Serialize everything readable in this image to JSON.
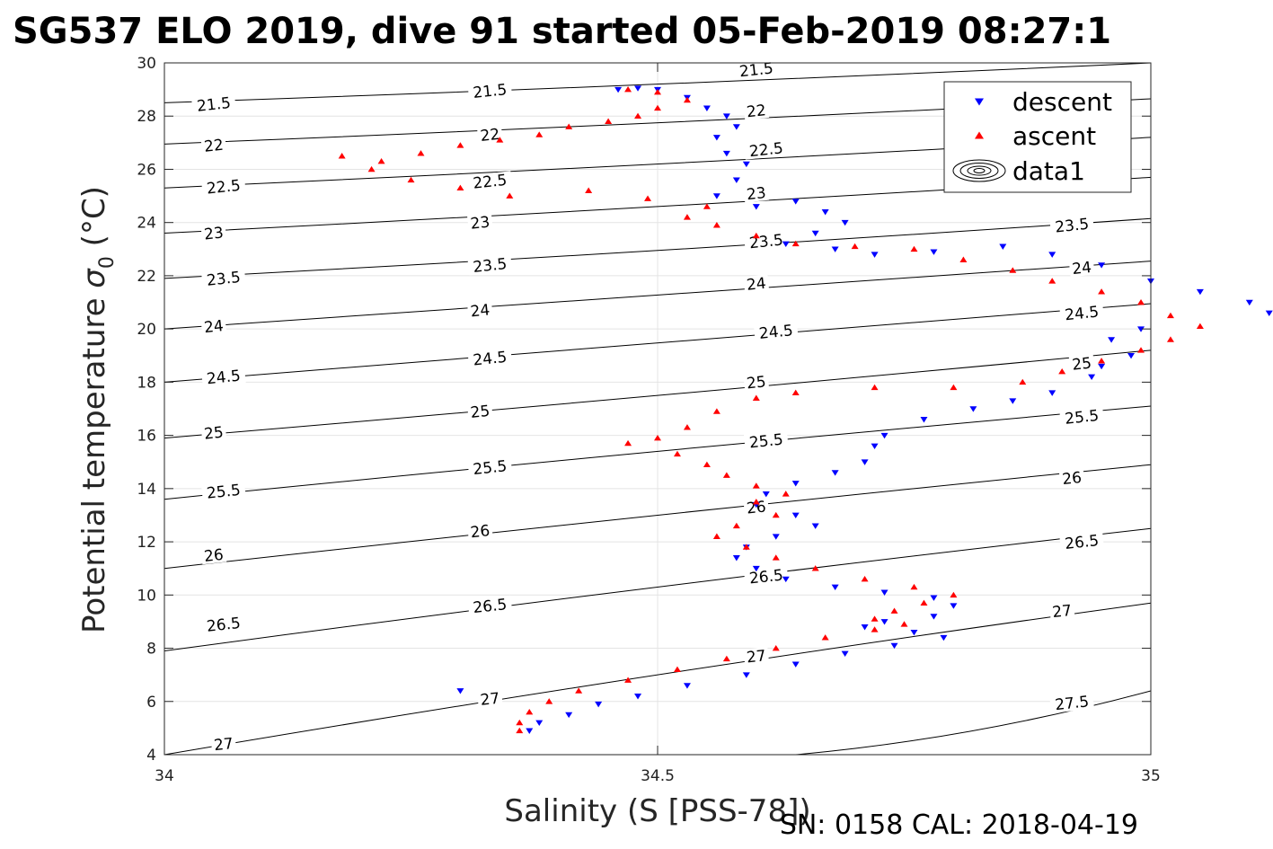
{
  "title": "SG537 ELO 2019, dive 91 started 05-Feb-2019 08:27:1",
  "footer": "SN: 0158  CAL: 2018-04-19",
  "chart_data": {
    "type": "scatter",
    "xlabel": "Salinity (S [PSS-78])",
    "ylabel_main": "Potential temperature ",
    "ylabel_sym": "σ",
    "ylabel_sub": "0",
    "ylabel_unit": " (°C)",
    "xlim": [
      34,
      35
    ],
    "ylim": [
      4,
      30
    ],
    "xticks": [
      34,
      34.5,
      35
    ],
    "xtick_labels": [
      "34",
      "34.5",
      "35"
    ],
    "yticks": [
      4,
      6,
      8,
      10,
      12,
      14,
      16,
      18,
      20,
      22,
      24,
      26,
      28,
      30
    ],
    "ytick_labels": [
      "4",
      "6",
      "8",
      "10",
      "12",
      "14",
      "16",
      "18",
      "20",
      "22",
      "24",
      "26",
      "28",
      "30"
    ],
    "grid": true,
    "legend_position": "top-right",
    "legend": [
      {
        "name": "descent",
        "marker": "triangle-down",
        "color": "#0000ff"
      },
      {
        "name": "ascent",
        "marker": "triangle-up",
        "color": "#ff0000"
      },
      {
        "name": "data1",
        "marker": "contour",
        "color": "#000000"
      }
    ],
    "series": [
      {
        "name": "descent",
        "color": "#0000ff",
        "marker": "triangle-down",
        "points": [
          [
            34.46,
            29.0
          ],
          [
            34.48,
            29.05
          ],
          [
            34.5,
            29.0
          ],
          [
            34.53,
            28.7
          ],
          [
            34.55,
            28.3
          ],
          [
            34.57,
            28.0
          ],
          [
            34.58,
            27.6
          ],
          [
            34.56,
            27.2
          ],
          [
            34.57,
            26.6
          ],
          [
            34.59,
            26.2
          ],
          [
            34.58,
            25.6
          ],
          [
            34.56,
            25.0
          ],
          [
            34.6,
            24.6
          ],
          [
            34.64,
            24.8
          ],
          [
            34.67,
            24.4
          ],
          [
            34.69,
            24.0
          ],
          [
            34.66,
            23.6
          ],
          [
            34.63,
            23.2
          ],
          [
            34.68,
            23.0
          ],
          [
            34.72,
            22.8
          ],
          [
            34.78,
            22.9
          ],
          [
            34.85,
            23.1
          ],
          [
            34.9,
            22.8
          ],
          [
            34.95,
            22.4
          ],
          [
            35.0,
            21.8
          ],
          [
            35.05,
            21.4
          ],
          [
            35.1,
            21.0
          ],
          [
            35.12,
            20.6
          ],
          [
            34.99,
            20.0
          ],
          [
            34.96,
            19.6
          ],
          [
            34.98,
            19.0
          ],
          [
            34.95,
            18.6
          ],
          [
            34.94,
            18.2
          ],
          [
            34.9,
            17.6
          ],
          [
            34.86,
            17.3
          ],
          [
            34.82,
            17.0
          ],
          [
            34.77,
            16.6
          ],
          [
            34.73,
            16.0
          ],
          [
            34.72,
            15.6
          ],
          [
            34.71,
            15.0
          ],
          [
            34.68,
            14.6
          ],
          [
            34.64,
            14.2
          ],
          [
            34.61,
            13.8
          ],
          [
            34.6,
            13.4
          ],
          [
            34.64,
            13.0
          ],
          [
            34.66,
            12.6
          ],
          [
            34.62,
            12.2
          ],
          [
            34.59,
            11.8
          ],
          [
            34.58,
            11.4
          ],
          [
            34.6,
            11.0
          ],
          [
            34.63,
            10.6
          ],
          [
            34.68,
            10.3
          ],
          [
            34.73,
            10.1
          ],
          [
            34.78,
            9.9
          ],
          [
            34.8,
            9.6
          ],
          [
            34.78,
            9.2
          ],
          [
            34.73,
            9.0
          ],
          [
            34.71,
            8.8
          ],
          [
            34.76,
            8.6
          ],
          [
            34.79,
            8.4
          ],
          [
            34.74,
            8.1
          ],
          [
            34.69,
            7.8
          ],
          [
            34.64,
            7.4
          ],
          [
            34.59,
            7.0
          ],
          [
            34.53,
            6.6
          ],
          [
            34.48,
            6.2
          ],
          [
            34.44,
            5.9
          ],
          [
            34.41,
            5.5
          ],
          [
            34.38,
            5.2
          ],
          [
            34.37,
            4.9
          ],
          [
            34.3,
            6.4
          ]
        ]
      },
      {
        "name": "ascent",
        "color": "#ff0000",
        "marker": "triangle-up",
        "points": [
          [
            34.47,
            29.0
          ],
          [
            34.5,
            28.9
          ],
          [
            34.53,
            28.6
          ],
          [
            34.5,
            28.3
          ],
          [
            34.48,
            28.0
          ],
          [
            34.45,
            27.8
          ],
          [
            34.41,
            27.6
          ],
          [
            34.38,
            27.3
          ],
          [
            34.34,
            27.1
          ],
          [
            34.3,
            26.9
          ],
          [
            34.26,
            26.6
          ],
          [
            34.22,
            26.3
          ],
          [
            34.18,
            26.5
          ],
          [
            34.21,
            26.0
          ],
          [
            34.25,
            25.6
          ],
          [
            34.3,
            25.3
          ],
          [
            34.35,
            25.0
          ],
          [
            34.43,
            25.2
          ],
          [
            34.49,
            24.9
          ],
          [
            34.55,
            24.6
          ],
          [
            34.53,
            24.2
          ],
          [
            34.56,
            23.9
          ],
          [
            34.6,
            23.5
          ],
          [
            34.64,
            23.2
          ],
          [
            34.7,
            23.1
          ],
          [
            34.76,
            23.0
          ],
          [
            34.81,
            22.6
          ],
          [
            34.86,
            22.2
          ],
          [
            34.9,
            21.8
          ],
          [
            34.95,
            21.4
          ],
          [
            34.99,
            21.0
          ],
          [
            35.02,
            20.5
          ],
          [
            35.05,
            20.1
          ],
          [
            35.02,
            19.6
          ],
          [
            34.99,
            19.2
          ],
          [
            34.95,
            18.8
          ],
          [
            34.91,
            18.4
          ],
          [
            34.87,
            18.0
          ],
          [
            34.8,
            17.8
          ],
          [
            34.72,
            17.8
          ],
          [
            34.64,
            17.6
          ],
          [
            34.6,
            17.4
          ],
          [
            34.56,
            16.9
          ],
          [
            34.53,
            16.3
          ],
          [
            34.5,
            15.9
          ],
          [
            34.47,
            15.7
          ],
          [
            34.52,
            15.3
          ],
          [
            34.55,
            14.9
          ],
          [
            34.57,
            14.5
          ],
          [
            34.6,
            14.1
          ],
          [
            34.63,
            13.8
          ],
          [
            34.6,
            13.5
          ],
          [
            34.62,
            13.0
          ],
          [
            34.58,
            12.6
          ],
          [
            34.56,
            12.2
          ],
          [
            34.59,
            11.8
          ],
          [
            34.62,
            11.4
          ],
          [
            34.66,
            11.0
          ],
          [
            34.71,
            10.6
          ],
          [
            34.76,
            10.3
          ],
          [
            34.8,
            10.0
          ],
          [
            34.77,
            9.7
          ],
          [
            34.74,
            9.4
          ],
          [
            34.72,
            9.1
          ],
          [
            34.75,
            8.9
          ],
          [
            34.72,
            8.7
          ],
          [
            34.67,
            8.4
          ],
          [
            34.62,
            8.0
          ],
          [
            34.57,
            7.6
          ],
          [
            34.52,
            7.2
          ],
          [
            34.47,
            6.8
          ],
          [
            34.42,
            6.4
          ],
          [
            34.39,
            6.0
          ],
          [
            34.37,
            5.6
          ],
          [
            34.36,
            5.2
          ],
          [
            34.36,
            4.9
          ]
        ]
      }
    ],
    "contours": [
      {
        "label": "21.5",
        "points": [
          [
            34.0,
            28.5
          ],
          [
            34.5,
            29.2
          ],
          [
            35.0,
            30.0
          ]
        ]
      },
      {
        "label": "22",
        "points": [
          [
            34.0,
            26.95
          ],
          [
            34.5,
            27.75
          ],
          [
            35.0,
            28.65
          ]
        ]
      },
      {
        "label": "22.5",
        "points": [
          [
            34.0,
            25.3
          ],
          [
            34.5,
            26.2
          ],
          [
            35.0,
            27.2
          ]
        ]
      },
      {
        "label": "23",
        "points": [
          [
            34.0,
            23.6
          ],
          [
            34.5,
            24.6
          ],
          [
            35.0,
            25.7
          ]
        ]
      },
      {
        "label": "23.5",
        "points": [
          [
            34.0,
            21.9
          ],
          [
            34.5,
            22.95
          ],
          [
            35.0,
            24.15
          ]
        ]
      },
      {
        "label": "24",
        "points": [
          [
            34.0,
            20.0
          ],
          [
            34.5,
            21.3
          ],
          [
            35.0,
            22.55
          ]
        ]
      },
      {
        "label": "24.5",
        "points": [
          [
            34.0,
            18.0
          ],
          [
            34.5,
            19.5
          ],
          [
            35.0,
            20.95
          ]
        ]
      },
      {
        "label": "25",
        "points": [
          [
            34.0,
            15.9
          ],
          [
            34.5,
            17.5
          ],
          [
            35.0,
            19.2
          ]
        ]
      },
      {
        "label": "25.5",
        "points": [
          [
            34.0,
            13.6
          ],
          [
            34.5,
            15.4
          ],
          [
            35.0,
            17.1
          ]
        ]
      },
      {
        "label": "26",
        "points": [
          [
            34.0,
            11.0
          ],
          [
            34.5,
            13.0
          ],
          [
            35.0,
            14.9
          ]
        ]
      },
      {
        "label": "26.5",
        "points": [
          [
            34.0,
            7.9
          ],
          [
            34.5,
            10.3
          ],
          [
            35.0,
            12.5
          ]
        ]
      },
      {
        "label": "27",
        "points": [
          [
            34.0,
            4.0
          ],
          [
            34.5,
            7.0
          ],
          [
            35.0,
            9.7
          ]
        ]
      },
      {
        "label": "27.5",
        "points": [
          [
            34.64,
            4.0
          ],
          [
            34.82,
            4.9
          ],
          [
            35.0,
            6.4
          ]
        ]
      }
    ],
    "contour_label_positions": [
      [
        "21.5",
        [
          34.05,
          28.45
        ]
      ],
      [
        "21.5",
        [
          34.33,
          28.95
        ]
      ],
      [
        "21.5",
        [
          34.6,
          29.75
        ]
      ],
      [
        "22",
        [
          34.05,
          26.9
        ]
      ],
      [
        "22",
        [
          34.33,
          27.3
        ]
      ],
      [
        "22",
        [
          34.6,
          28.2
        ]
      ],
      [
        "22.5",
        [
          34.06,
          25.35
        ]
      ],
      [
        "22.5",
        [
          34.33,
          25.55
        ]
      ],
      [
        "22.5",
        [
          34.61,
          26.75
        ]
      ],
      [
        "23",
        [
          34.05,
          23.6
        ]
      ],
      [
        "23",
        [
          34.32,
          24.0
        ]
      ],
      [
        "23",
        [
          34.6,
          25.1
        ]
      ],
      [
        "23.5",
        [
          34.92,
          23.9
        ]
      ],
      [
        "23.5",
        [
          34.06,
          21.9
        ]
      ],
      [
        "23.5",
        [
          34.33,
          22.4
        ]
      ],
      [
        "23.5",
        [
          34.61,
          23.3
        ]
      ],
      [
        "24",
        [
          34.93,
          22.3
        ]
      ],
      [
        "24",
        [
          34.05,
          20.1
        ]
      ],
      [
        "24",
        [
          34.32,
          20.7
        ]
      ],
      [
        "24",
        [
          34.6,
          21.7
        ]
      ],
      [
        "24.5",
        [
          34.93,
          20.6
        ]
      ],
      [
        "24.5",
        [
          34.06,
          18.2
        ]
      ],
      [
        "24.5",
        [
          34.33,
          18.9
        ]
      ],
      [
        "24.5",
        [
          34.62,
          19.9
        ]
      ],
      [
        "25",
        [
          34.93,
          18.7
        ]
      ],
      [
        "25",
        [
          34.05,
          16.1
        ]
      ],
      [
        "25",
        [
          34.32,
          16.9
        ]
      ],
      [
        "25",
        [
          34.6,
          18.0
        ]
      ],
      [
        "25.5",
        [
          34.93,
          16.7
        ]
      ],
      [
        "25.5",
        [
          34.06,
          13.9
        ]
      ],
      [
        "25.5",
        [
          34.33,
          14.8
        ]
      ],
      [
        "25.5",
        [
          34.61,
          15.8
        ]
      ],
      [
        "26",
        [
          34.92,
          14.4
        ]
      ],
      [
        "26",
        [
          34.05,
          11.5
        ]
      ],
      [
        "26",
        [
          34.32,
          12.4
        ]
      ],
      [
        "26",
        [
          34.6,
          13.3
        ]
      ],
      [
        "26.5",
        [
          34.93,
          12.0
        ]
      ],
      [
        "26.5",
        [
          34.06,
          8.9
        ]
      ],
      [
        "26.5",
        [
          34.33,
          9.6
        ]
      ],
      [
        "26.5",
        [
          34.61,
          10.7
        ]
      ],
      [
        "27",
        [
          34.91,
          9.4
        ]
      ],
      [
        "27",
        [
          34.06,
          4.4
        ]
      ],
      [
        "27",
        [
          34.33,
          6.1
        ]
      ],
      [
        "27",
        [
          34.6,
          7.7
        ]
      ],
      [
        "27.5",
        [
          34.92,
          5.95
        ]
      ]
    ]
  }
}
